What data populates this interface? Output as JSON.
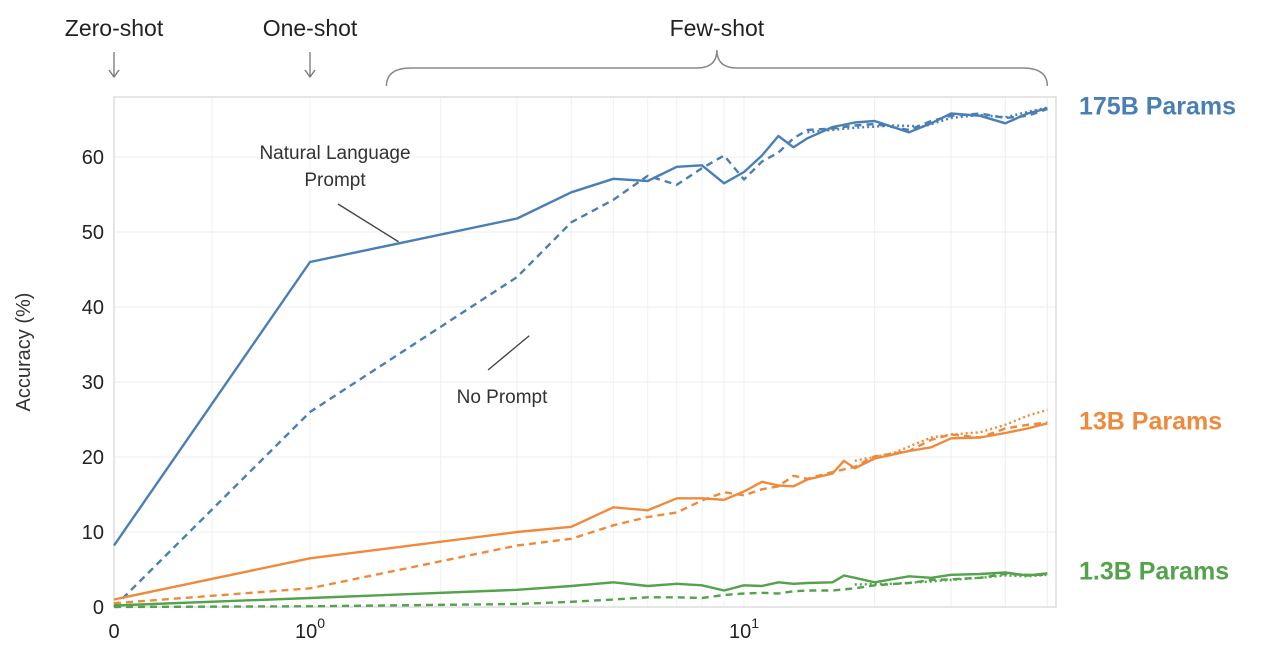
{
  "chart_data": {
    "type": "line",
    "xscale": "symlog",
    "ylabel": "Accuracy (%)",
    "ylim": [
      0,
      68
    ],
    "xlim": [
      0,
      50
    ],
    "yticks": [
      "0",
      "10",
      "20",
      "30",
      "40",
      "50",
      "60"
    ],
    "xticks": [
      {
        "value": 0,
        "label": "0",
        "sup": ""
      },
      {
        "value": 1,
        "label": "10",
        "sup": "0"
      },
      {
        "value": 10,
        "label": "10",
        "sup": "1"
      }
    ],
    "grid": true,
    "regions": [
      {
        "label": "Zero-shot",
        "x": 0
      },
      {
        "label": "One-shot",
        "x": 1
      },
      {
        "label": "Few-shot",
        "x_from": 1.5,
        "x_to": 50
      }
    ],
    "annotations": [
      {
        "label_lines": [
          "Natural Language",
          "Prompt"
        ],
        "points_to_x": 1.6,
        "points_to_y": 49.5
      },
      {
        "label_lines": [
          "No Prompt"
        ],
        "points_to_x": 3.2,
        "points_to_y": 37.5
      }
    ],
    "groups": [
      {
        "label": "175B Params",
        "color": "#4a7fb5",
        "series": [
          {
            "style": "solid",
            "x": [
              0,
              1,
              3,
              4,
              5,
              6,
              7,
              8,
              9,
              10,
              11,
              12,
              13,
              14,
              16,
              18,
              20,
              24,
              27,
              30,
              35,
              40,
              45,
              50
            ],
            "y": [
              8.2,
              46,
              51.8,
              55.3,
              57.1,
              56.8,
              58.7,
              58.9,
              56.5,
              58,
              60.2,
              62.8,
              61.3,
              62.5,
              64,
              64.6,
              64.8,
              63.3,
              64.5,
              65.8,
              65.5,
              64.5,
              65.8,
              66.5
            ]
          },
          {
            "style": "dashed",
            "x": [
              0,
              1,
              3,
              4,
              5,
              6,
              7,
              8,
              9,
              10,
              11,
              12,
              13,
              14,
              16,
              18,
              20,
              24,
              27,
              30,
              35,
              40,
              45,
              50
            ],
            "y": [
              0,
              26,
              44,
              51.3,
              54.3,
              57.5,
              56.3,
              58.5,
              60.2,
              57,
              59.4,
              60.6,
              62.5,
              63.6,
              63.8,
              64.2,
              64.4,
              63.6,
              64.8,
              65.5,
              65.8,
              65.2,
              65.5,
              66.4
            ]
          },
          {
            "style": "dotted",
            "x": [
              14,
              18,
              22,
              26,
              30,
              35,
              40,
              45,
              50
            ],
            "y": [
              63.3,
              63.9,
              64.2,
              64.1,
              65.2,
              65.6,
              65.3,
              66,
              66.6
            ]
          }
        ]
      },
      {
        "label": "13B Params",
        "color": "#ef8a3c",
        "series": [
          {
            "style": "solid",
            "x": [
              0,
              1,
              3,
              4,
              5,
              6,
              7,
              8,
              9,
              10,
              11,
              12,
              13,
              14,
              16,
              17,
              18,
              20,
              24,
              27,
              30,
              35,
              40,
              45,
              50
            ],
            "y": [
              1,
              6.5,
              10,
              10.7,
              13.3,
              12.9,
              14.5,
              14.5,
              14.3,
              15.4,
              16.7,
              16.2,
              16.1,
              17,
              17.8,
              19.5,
              18.5,
              19.8,
              20.8,
              21.3,
              22.5,
              22.6,
              23.2,
              23.8,
              24.5
            ]
          },
          {
            "style": "dashed",
            "x": [
              0,
              1,
              3,
              4,
              5,
              6,
              7,
              8,
              9,
              10,
              11,
              12,
              13,
              14,
              16,
              18,
              20,
              24,
              27,
              30,
              35,
              40,
              45,
              50
            ],
            "y": [
              0.5,
              2.5,
              8.2,
              9.1,
              10.9,
              12,
              12.6,
              14.2,
              15.3,
              14.9,
              15.7,
              16.1,
              17.5,
              17.1,
              18,
              18.7,
              20.1,
              20.8,
              22.3,
              23,
              22.6,
              23.8,
              24.3,
              24.6
            ]
          },
          {
            "style": "dotted",
            "x": [
              18,
              22,
              27,
              30,
              35,
              40,
              45,
              50
            ],
            "y": [
              19.5,
              20.5,
              22.6,
              23,
              23.3,
              24.3,
              25.5,
              26.3
            ]
          }
        ]
      },
      {
        "label": "1.3B Params",
        "color": "#54a24b",
        "series": [
          {
            "style": "solid",
            "x": [
              0,
              1,
              3,
              4,
              5,
              6,
              7,
              8,
              9,
              10,
              11,
              12,
              13,
              14,
              16,
              17,
              18,
              20,
              24,
              27,
              30,
              35,
              40,
              45,
              50
            ],
            "y": [
              0.2,
              1.2,
              2.3,
              2.8,
              3.3,
              2.8,
              3.1,
              2.9,
              2.2,
              2.9,
              2.8,
              3.3,
              3.1,
              3.2,
              3.3,
              4.2,
              3.9,
              3.3,
              4.1,
              3.9,
              4.3,
              4.4,
              4.6,
              4.2,
              4.5
            ]
          },
          {
            "style": "dashed",
            "x": [
              0,
              1,
              3,
              4,
              5,
              6,
              7,
              8,
              9,
              10,
              11,
              12,
              13,
              14,
              16,
              18,
              20,
              24,
              27,
              30,
              35,
              40,
              45,
              50
            ],
            "y": [
              0,
              0.1,
              0.4,
              0.7,
              1,
              1.3,
              1.3,
              1.2,
              1.6,
              1.8,
              1.9,
              1.8,
              2.1,
              2.2,
              2.2,
              2.5,
              2.9,
              3.2,
              3.6,
              3.7,
              3.9,
              4.4,
              4.3,
              4.3
            ]
          },
          {
            "style": "dotted",
            "x": [
              18,
              22,
              27,
              30,
              35,
              40,
              45,
              50
            ],
            "y": [
              3,
              3.1,
              3.4,
              3.6,
              3.9,
              4.2,
              4.1,
              4.3
            ]
          }
        ]
      }
    ]
  }
}
